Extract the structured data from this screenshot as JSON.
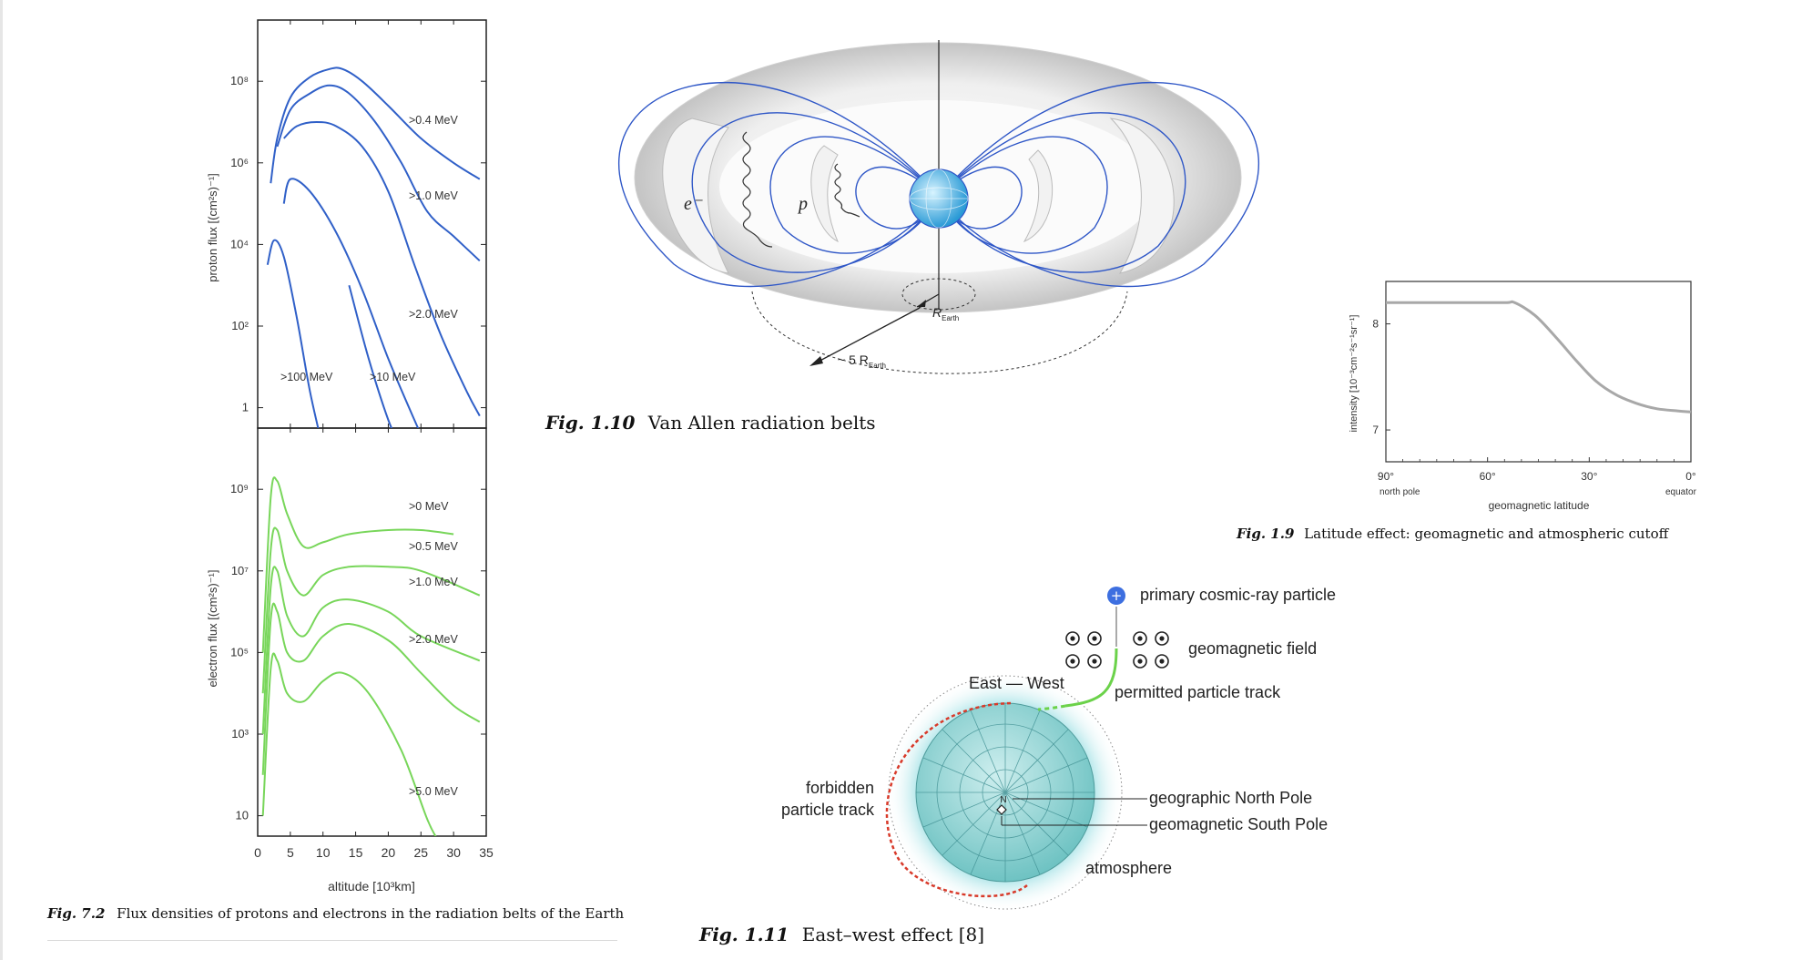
{
  "figures": {
    "fig72": {
      "caption_label": "Fig. 7.2",
      "caption_text": "Flux densities of protons and electrons in the radiation belts of the Earth",
      "proton_ylabel": "proton flux [(cm²s)⁻¹]",
      "electron_ylabel": "electron flux [(cm²s)⁻¹]",
      "proton_yticks": [
        "10⁸",
        "10⁶",
        "10⁴",
        "10²",
        "1"
      ],
      "electron_yticks": [
        "10⁹",
        "10⁷",
        "10⁵",
        "10³",
        "10"
      ],
      "xticks": [
        "0",
        "5",
        "10",
        "15",
        "20",
        "25",
        "30",
        "35"
      ],
      "xlabel": "altitude [10³km]",
      "proton_labels": [
        ">0.4 MeV",
        ">1.0 MeV",
        ">2.0 MeV",
        ">100 MeV",
        ">10 MeV"
      ],
      "electron_labels": [
        ">0 MeV",
        ">0.5 MeV",
        ">1.0 MeV",
        ">2.0 MeV",
        ">5.0 MeV"
      ]
    },
    "fig110": {
      "caption_label": "Fig. 1.10",
      "caption_text": "Van Allen radiation belts",
      "electron_label": "e⁻",
      "proton_label": "p",
      "r_earth_label": "R",
      "r_earth_sub": "Earth",
      "five_r_label": "~ 5 R",
      "five_r_sub": "Earth"
    },
    "fig19": {
      "caption_label": "Fig. 1.9",
      "caption_text": "Latitude effect: geomagnetic and atmospheric cutoff",
      "ylabel": "intensity [10⁻³cm⁻²s⁻¹sr⁻¹]",
      "yticks": [
        "8",
        "7"
      ],
      "xticks": [
        "90°",
        "60°",
        "30°",
        "0°"
      ],
      "x_sublabels": [
        "north pole",
        "equator"
      ],
      "xlabel": "geomagnetic latitude"
    },
    "fig111": {
      "caption_label": "Fig. 1.11",
      "caption_text": "East–west effect [8]",
      "primary": "primary cosmic-ray particle",
      "field": "geomagnetic field",
      "east_west": "East — West",
      "permitted": "permitted particle track",
      "forbidden_1": "forbidden",
      "forbidden_2": "particle track",
      "north_pole": "geographic North Pole",
      "south_pole": "geomagnetic South Pole",
      "atmosphere": "atmosphere",
      "n_label": "N"
    }
  },
  "chart_data": [
    {
      "type": "line",
      "title": "",
      "xlabel": "altitude [10³km]",
      "ylabel": "proton flux [(cm²s)⁻¹]",
      "xlim": [
        0,
        35
      ],
      "yscale": "log",
      "ylim_log10": [
        -0.5,
        9.5
      ],
      "series": [
        {
          "name": ">0.4 MeV",
          "x": [
            2,
            3,
            5,
            8,
            11,
            13,
            16,
            20,
            25,
            30,
            34
          ],
          "log10_y": [
            5.5,
            6.6,
            7.6,
            8.1,
            8.3,
            8.3,
            8.0,
            7.4,
            6.6,
            6.0,
            5.6
          ]
        },
        {
          "name": ">1.0 MeV",
          "x": [
            3,
            5,
            8,
            11,
            14,
            18,
            22,
            26,
            30,
            34
          ],
          "log10_y": [
            6.4,
            7.3,
            7.7,
            7.9,
            7.7,
            7.0,
            6.0,
            4.8,
            4.2,
            3.6
          ]
        },
        {
          "name": ">2.0 MeV",
          "x": [
            4,
            6,
            9,
            12,
            16,
            20,
            24,
            28,
            32,
            34
          ],
          "log10_y": [
            6.6,
            6.9,
            7.0,
            6.9,
            6.4,
            5.3,
            3.5,
            1.8,
            0.4,
            -0.2
          ]
        },
        {
          "name": "",
          "x": [
            4,
            5,
            8,
            12,
            16,
            20,
            24,
            26,
            28
          ],
          "log10_y": [
            5.0,
            5.6,
            5.3,
            4.3,
            2.9,
            1.2,
            -0.3,
            -1.0,
            -1.6
          ]
        },
        {
          "name": ">100 MeV",
          "x": [
            1.5,
            2.5,
            4,
            6,
            8,
            10
          ],
          "log10_y": [
            3.5,
            4.1,
            3.7,
            2.2,
            0.4,
            -1.0
          ]
        },
        {
          "name": ">10 MeV",
          "x": [
            14,
            17,
            20,
            22
          ],
          "log10_y": [
            3.0,
            1.2,
            -0.3,
            -1.0
          ]
        }
      ]
    },
    {
      "type": "line",
      "title": "",
      "xlabel": "altitude [10³km]",
      "ylabel": "electron flux [(cm²s)⁻¹]",
      "xlim": [
        0,
        35
      ],
      "yscale": "log",
      "ylim_log10": [
        0.5,
        10.5
      ],
      "series": [
        {
          "name": ">0 MeV",
          "x": [
            0.8,
            2,
            3,
            4.5,
            7,
            10,
            14,
            20,
            25,
            30
          ],
          "log10_y": [
            5.0,
            8.8,
            9.2,
            8.4,
            7.6,
            7.7,
            7.9,
            8.0,
            8.0,
            7.9
          ]
        },
        {
          "name": ">0.5 MeV",
          "x": [
            0.8,
            2,
            3,
            4.5,
            7,
            10,
            14,
            20,
            25,
            34
          ],
          "log10_y": [
            4.0,
            7.5,
            8.0,
            7.0,
            6.4,
            6.9,
            7.1,
            7.1,
            7.0,
            6.4
          ]
        },
        {
          "name": ">1.0 MeV",
          "x": [
            0.8,
            2,
            3,
            4.5,
            7,
            10,
            14,
            20,
            25,
            34
          ],
          "log10_y": [
            3.0,
            6.6,
            7.0,
            5.9,
            5.4,
            6.1,
            6.3,
            6.0,
            5.4,
            4.8
          ]
        },
        {
          "name": ">2.0 MeV",
          "x": [
            0.8,
            2,
            3,
            4.5,
            7,
            10,
            14,
            20,
            25,
            30,
            34
          ],
          "log10_y": [
            2.0,
            5.8,
            6.0,
            5.0,
            4.8,
            5.4,
            5.7,
            5.3,
            4.5,
            3.7,
            3.3
          ]
        },
        {
          "name": ">5.0 MeV",
          "x": [
            0.8,
            2,
            3,
            4.5,
            7,
            10,
            13,
            17,
            22,
            26,
            28
          ],
          "log10_y": [
            1.0,
            4.6,
            4.8,
            4.0,
            3.8,
            4.3,
            4.5,
            4.0,
            2.6,
            0.9,
            0.3
          ]
        }
      ]
    },
    {
      "type": "line",
      "title": "",
      "xlabel": "geomagnetic latitude",
      "ylabel": "intensity [10⁻³cm⁻²s⁻¹sr⁻¹]",
      "x_categories_ticks": [
        "90°",
        "60°",
        "30°",
        "0°"
      ],
      "xlim": [
        90,
        0
      ],
      "ylim": [
        6.7,
        8.4
      ],
      "series": [
        {
          "name": "",
          "x": [
            90,
            80,
            70,
            55,
            52,
            46,
            40,
            34,
            28,
            22,
            16,
            10,
            4,
            0
          ],
          "y": [
            8.2,
            8.2,
            8.2,
            8.2,
            8.2,
            8.08,
            7.88,
            7.66,
            7.46,
            7.33,
            7.25,
            7.2,
            7.18,
            7.17
          ]
        }
      ]
    }
  ]
}
